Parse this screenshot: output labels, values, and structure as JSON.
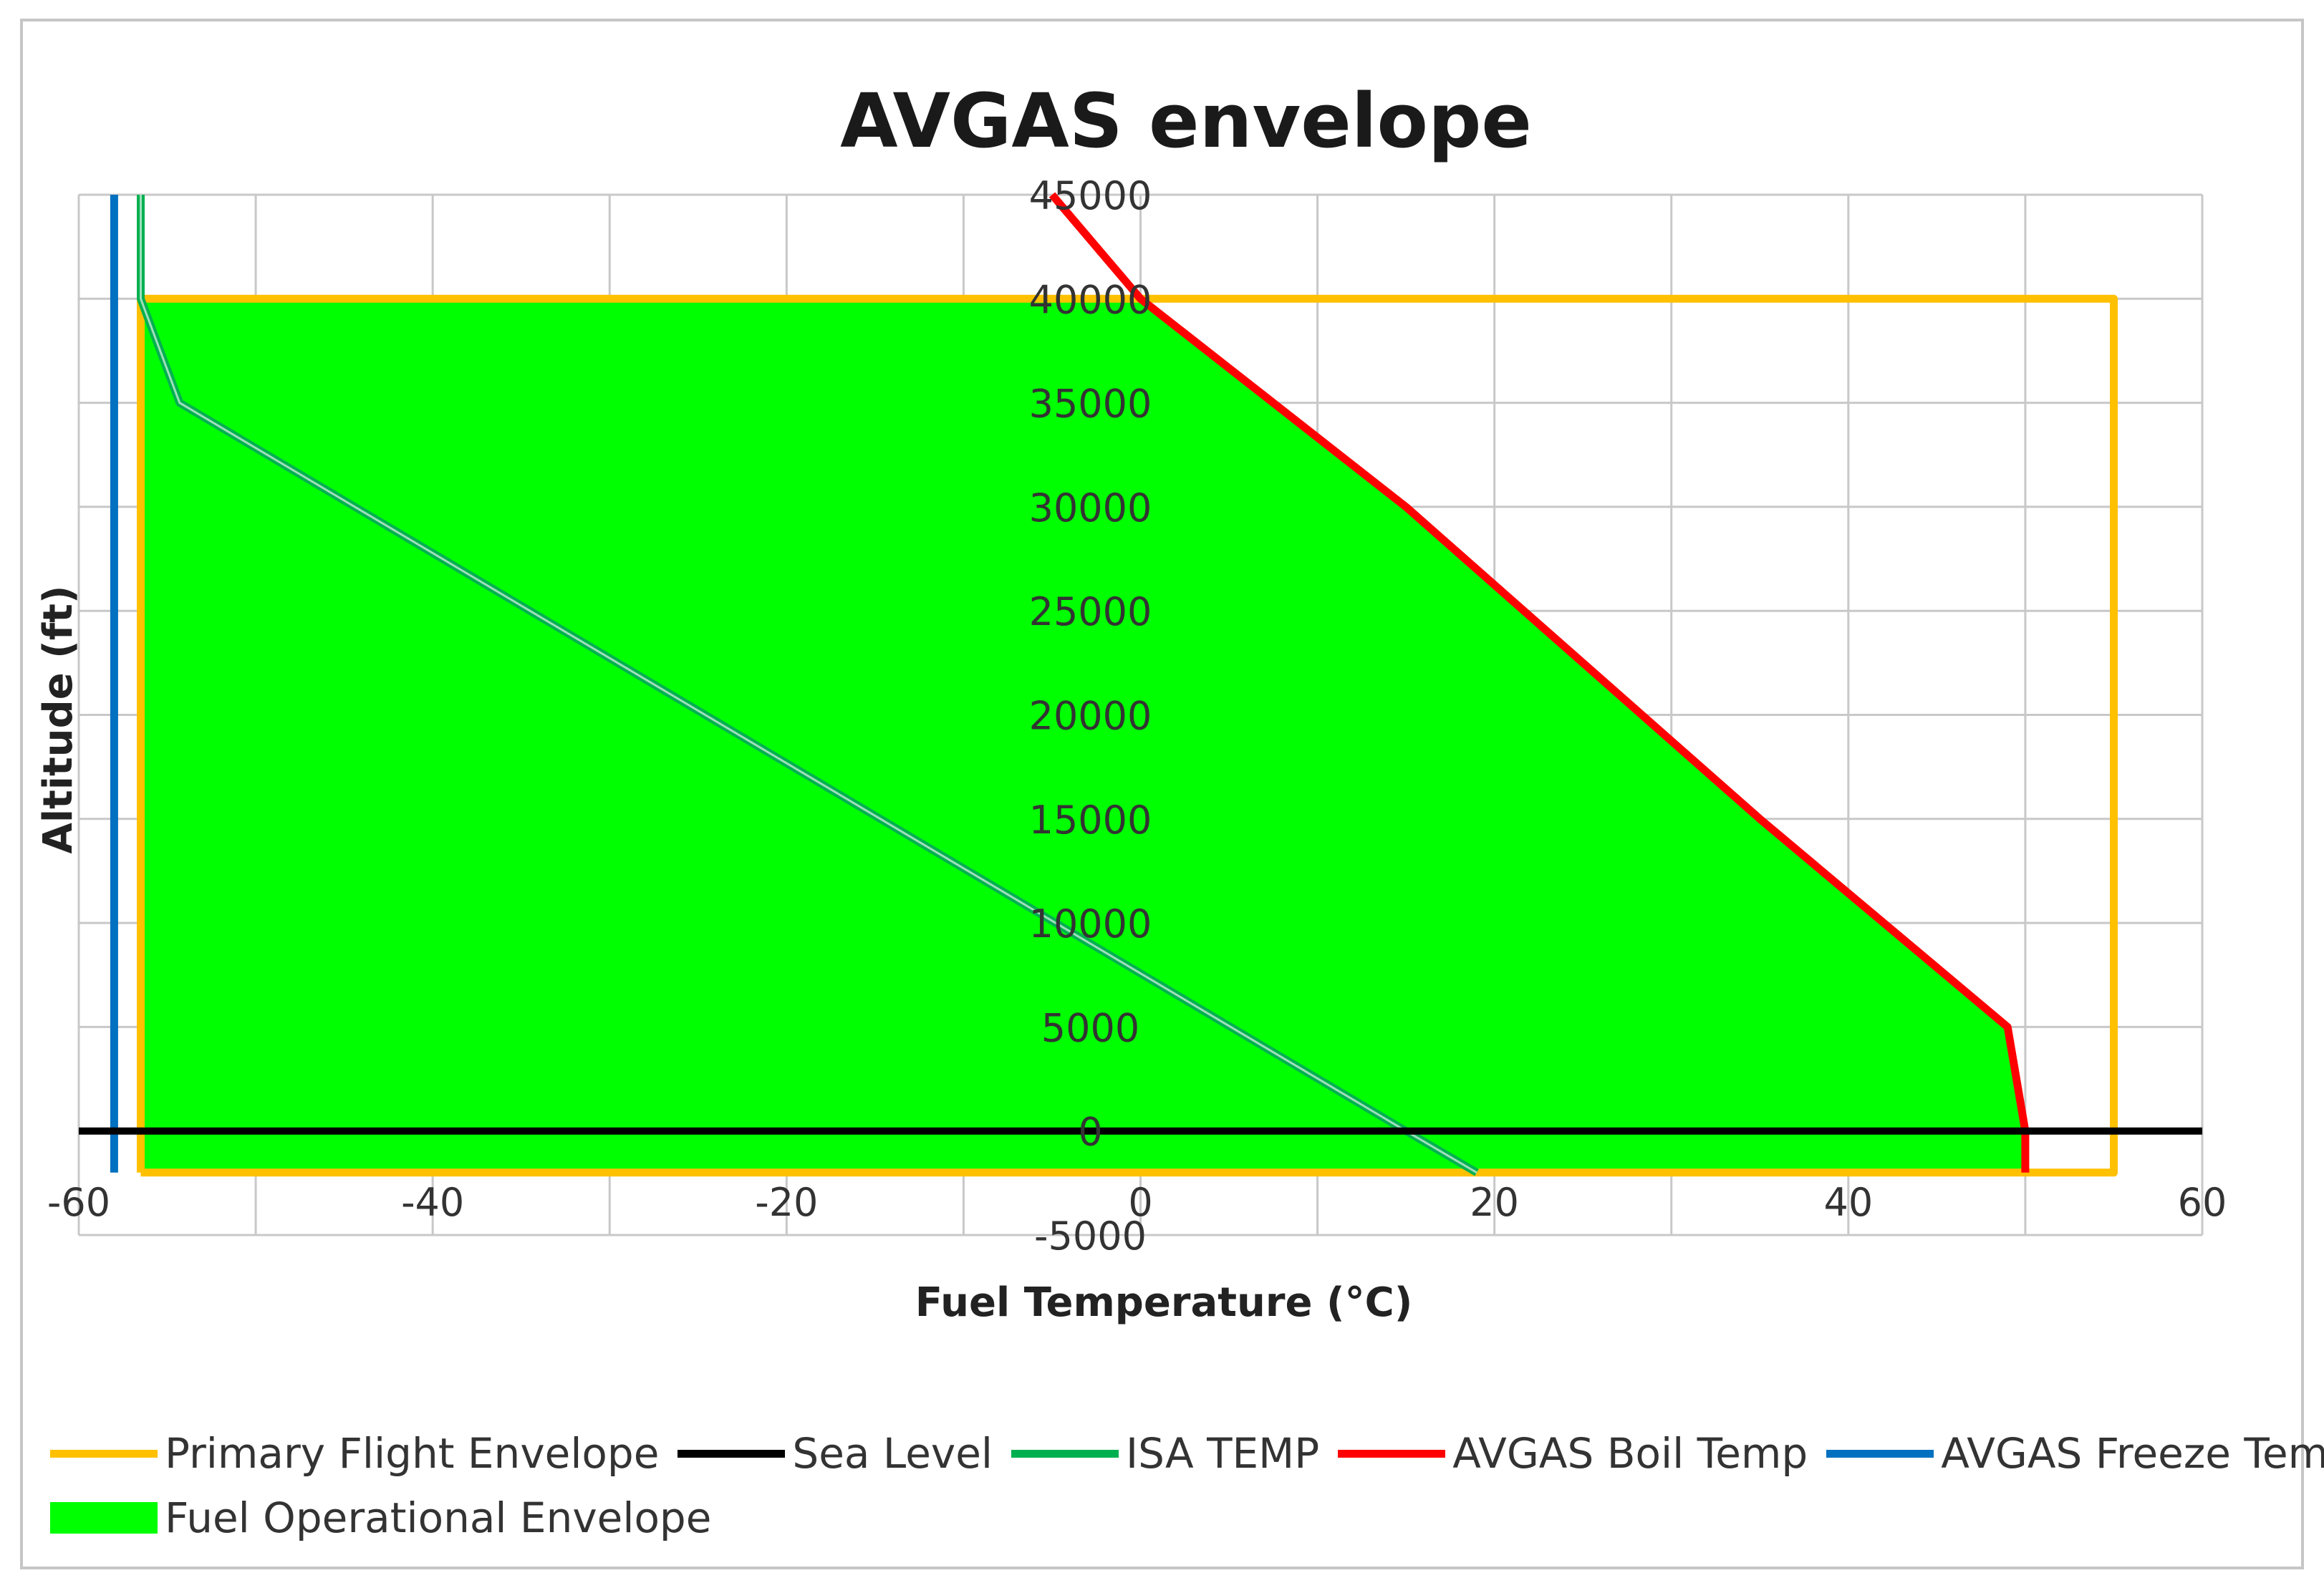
{
  "chart_data": {
    "type": "line",
    "title": "AVGAS envelope",
    "xlabel": "Fuel Temperature (°C)",
    "ylabel": "Altitude (ft)",
    "xlim": [
      -60,
      60
    ],
    "ylim": [
      -5000,
      45000
    ],
    "x_ticks": [
      -60,
      -40,
      -20,
      0,
      20,
      40,
      60
    ],
    "y_ticks": [
      45000,
      40000,
      35000,
      30000,
      25000,
      20000,
      15000,
      10000,
      5000,
      0,
      -5000
    ],
    "x_tick_labels": [
      "-60",
      "-40",
      "-20",
      "0",
      "20",
      "40",
      "60"
    ],
    "y_tick_labels": [
      "45000",
      "40000",
      "35000",
      "30000",
      "25000",
      "20000",
      "15000",
      "10000",
      "5000",
      "0",
      "-5000"
    ],
    "grid": true,
    "legend_position": "bottom",
    "series": [
      {
        "name": "Fuel Operational Envelope",
        "kind": "area",
        "color": "#00ff00",
        "points": [
          [
            -56.5,
            -2000
          ],
          [
            -56.5,
            40000
          ],
          [
            0,
            40000
          ],
          [
            15,
            30000
          ],
          [
            35,
            15000
          ],
          [
            49,
            5000
          ],
          [
            50,
            0
          ],
          [
            50,
            -2000
          ]
        ]
      },
      {
        "name": "Primary Flight Envelope",
        "kind": "line",
        "color": "#ffc000",
        "points": [
          [
            -56.5,
            -2000
          ],
          [
            -56.5,
            40000
          ],
          [
            55,
            40000
          ],
          [
            55,
            -2000
          ],
          [
            -56.5,
            -2000
          ]
        ]
      },
      {
        "name": "Sea Level",
        "kind": "line",
        "color": "#000000",
        "points": [
          [
            -60,
            0
          ],
          [
            60,
            0
          ]
        ]
      },
      {
        "name": "ISA TEMP",
        "kind": "line",
        "color": "#00b050",
        "points": [
          [
            -56.5,
            45000
          ],
          [
            -56.5,
            40000
          ],
          [
            -54.3,
            35000
          ],
          [
            -4.8,
            10000
          ],
          [
            15,
            0
          ],
          [
            19,
            -2000
          ]
        ]
      },
      {
        "name": "AVGAS Boil Temp",
        "kind": "line",
        "color": "#ff0000",
        "points": [
          [
            -5,
            45000
          ],
          [
            0,
            40000
          ],
          [
            15,
            30000
          ],
          [
            35,
            15000
          ],
          [
            49,
            5000
          ],
          [
            50,
            0
          ],
          [
            50,
            -2000
          ]
        ]
      },
      {
        "name": "AVGAS Freeze Temp",
        "kind": "line",
        "color": "#0070c0",
        "points": [
          [
            -58,
            -2000
          ],
          [
            -58,
            45000
          ]
        ]
      }
    ],
    "legend": [
      {
        "name": "Primary Flight Envelope",
        "color": "#ffc000",
        "swatch": "line"
      },
      {
        "name": "Sea Level",
        "color": "#000000",
        "swatch": "line"
      },
      {
        "name": "ISA TEMP",
        "color": "#00b050",
        "swatch": "line"
      },
      {
        "name": "AVGAS Boil Temp",
        "color": "#ff0000",
        "swatch": "line"
      },
      {
        "name": "AVGAS Freeze Temp",
        "color": "#0070c0",
        "swatch": "line"
      },
      {
        "name": "Fuel Operational Envelope",
        "color": "#00ff00",
        "swatch": "box"
      }
    ]
  }
}
